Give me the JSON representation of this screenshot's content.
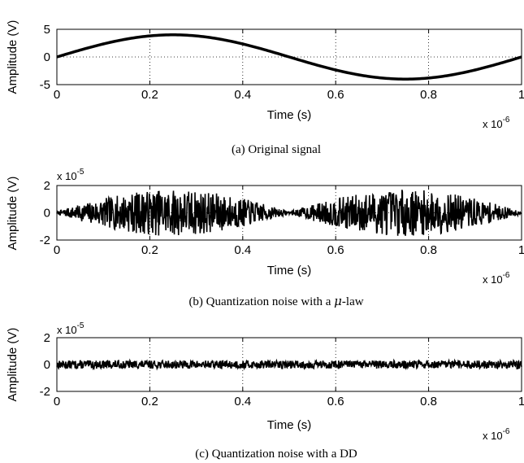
{
  "chart_data": [
    {
      "type": "line",
      "caption": "(a) Original signal",
      "xlabel": "Time (s)",
      "ylabel": "Amplitude (V)",
      "x_exponent": "x 10",
      "x_exponent_power": "-6",
      "y_exponent": "",
      "y_exponent_power": "",
      "xlim": [
        0,
        1
      ],
      "ylim": [
        -5,
        5
      ],
      "xticks": [
        "0",
        "0.2",
        "0.4",
        "0.6",
        "0.8",
        "1"
      ],
      "yticks": [
        "5",
        "0",
        "-5"
      ],
      "ytick_values": [
        5,
        0,
        -5
      ],
      "grid": true,
      "series": [
        {
          "kind": "sine",
          "amplitude": 4,
          "x": [
            0,
            0.05,
            0.1,
            0.15,
            0.2,
            0.25,
            0.3,
            0.35,
            0.4,
            0.45,
            0.5,
            0.55,
            0.6,
            0.65,
            0.7,
            0.75,
            0.8,
            0.85,
            0.9,
            0.95,
            1.0
          ],
          "values": [
            0,
            1.24,
            2.35,
            3.24,
            3.8,
            4.0,
            3.8,
            3.24,
            2.35,
            1.24,
            0,
            -1.24,
            -2.35,
            -3.24,
            -3.8,
            -4.0,
            -3.8,
            -3.24,
            -2.35,
            -1.24,
            0
          ]
        }
      ]
    },
    {
      "type": "line",
      "caption_prefix": "(b) Quantization noise with a ",
      "caption_mu": "μ",
      "caption_suffix": "-law",
      "xlabel": "Time (s)",
      "ylabel": "Amplitude (V)",
      "x_exponent": "x 10",
      "x_exponent_power": "-6",
      "y_exponent": "x 10",
      "y_exponent_power": "-5",
      "xlim": [
        0,
        1
      ],
      "ylim": [
        -2,
        2
      ],
      "xticks": [
        "0",
        "0.2",
        "0.4",
        "0.6",
        "0.8",
        "1"
      ],
      "yticks": [
        "2",
        "0",
        "-2"
      ],
      "ytick_values": [
        2,
        0,
        -2
      ],
      "grid": true,
      "series": [
        {
          "kind": "noise-envelope",
          "envelope_peak": 1.7,
          "envelope_min": 0.1,
          "envelope_shape": "abs-sine"
        }
      ]
    },
    {
      "type": "line",
      "caption": "(c) Quantization noise with a DD",
      "xlabel": "Time (s)",
      "ylabel": "Amplitude (V)",
      "x_exponent": "x 10",
      "x_exponent_power": "-6",
      "y_exponent": "x 10",
      "y_exponent_power": "-5",
      "xlim": [
        0,
        1
      ],
      "ylim": [
        -2,
        2
      ],
      "xticks": [
        "0",
        "0.2",
        "0.4",
        "0.6",
        "0.8",
        "1"
      ],
      "yticks": [
        "2",
        "0",
        "-2"
      ],
      "ytick_values": [
        2,
        0,
        -2
      ],
      "grid": true,
      "series": [
        {
          "kind": "noise-uniform",
          "envelope_peak": 0.3
        }
      ]
    }
  ]
}
